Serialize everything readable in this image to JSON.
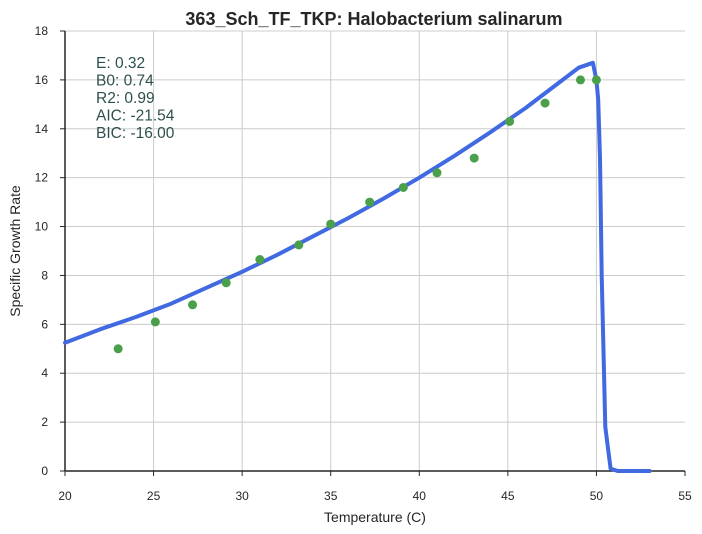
{
  "chart_data": {
    "type": "scatter",
    "title": "363_Sch_TF_TKP: Halobacterium salinarum",
    "xlabel": "Temperature (C)",
    "ylabel": "Specific Growth Rate",
    "xlim": [
      20,
      55
    ],
    "ylim": [
      0,
      18
    ],
    "x_ticks": [
      20,
      25,
      30,
      35,
      40,
      45,
      50,
      55
    ],
    "y_ticks": [
      0,
      2,
      4,
      6,
      8,
      10,
      12,
      14,
      16,
      18
    ],
    "grid": true,
    "colors": {
      "points": "#4aa04a",
      "fit_line": "#4169e1",
      "grid": "#cccccc",
      "stats_text": "#2f4f4f"
    },
    "points": {
      "x": [
        23.0,
        25.1,
        27.2,
        29.1,
        31.0,
        33.2,
        35.0,
        37.2,
        39.1,
        41.0,
        43.1,
        45.1,
        47.1,
        49.1,
        50.0
      ],
      "y": [
        5.0,
        6.1,
        6.8,
        7.7,
        8.65,
        9.25,
        10.1,
        11.0,
        11.6,
        12.2,
        12.8,
        14.3,
        15.05,
        16.0,
        16.0
      ]
    },
    "fit_line": {
      "x": [
        20.0,
        22.0,
        24.0,
        26.0,
        28.0,
        30.0,
        32.0,
        34.0,
        36.0,
        38.0,
        40.0,
        42.0,
        44.0,
        46.0,
        48.0,
        49.0,
        49.8,
        50.0,
        50.1,
        50.2,
        50.3,
        50.5,
        50.8,
        51.2,
        53.0
      ],
      "y": [
        5.25,
        5.8,
        6.3,
        6.85,
        7.5,
        8.15,
        8.85,
        9.6,
        10.35,
        11.15,
        12.0,
        12.9,
        13.85,
        14.85,
        15.95,
        16.5,
        16.7,
        16.0,
        15.2,
        12.8,
        8.0,
        1.8,
        0.1,
        0.0,
        0.0
      ]
    },
    "annotation": [
      {
        "label": "E:",
        "value": "0.32"
      },
      {
        "label": "B0:",
        "value": "0.74"
      },
      {
        "label": "R2:",
        "value": "0.99"
      },
      {
        "label": "AIC:",
        "value": "-21.54"
      },
      {
        "label": "BIC:",
        "value": "-16.00"
      }
    ]
  }
}
